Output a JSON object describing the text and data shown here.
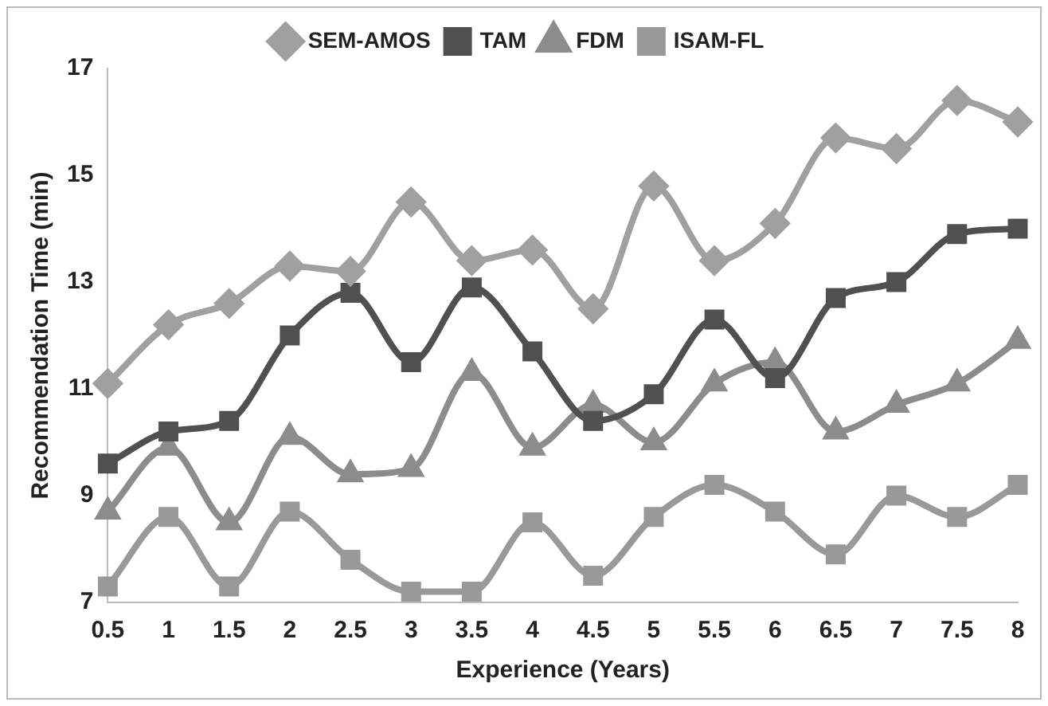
{
  "chart_data": {
    "type": "line",
    "xlabel": "Experience (Years)",
    "ylabel": "Recommendation Time (min)",
    "categories": [
      "0.5",
      "1",
      "1.5",
      "2",
      "2.5",
      "3",
      "3.5",
      "4",
      "4.5",
      "5",
      "5.5",
      "6",
      "6.5",
      "7",
      "7.5",
      "8"
    ],
    "series": [
      {
        "name": "SEM-AMOS",
        "color": "#a0a0a0",
        "marker": "diamond",
        "values": [
          11.1,
          12.2,
          12.6,
          13.3,
          13.2,
          14.5,
          13.4,
          13.6,
          12.5,
          14.8,
          13.4,
          14.1,
          15.7,
          15.5,
          16.4,
          16.0
        ]
      },
      {
        "name": "TAM",
        "color": "#505050",
        "marker": "square",
        "values": [
          9.6,
          10.2,
          10.4,
          12.0,
          12.8,
          11.5,
          12.9,
          11.7,
          10.4,
          10.9,
          12.3,
          11.2,
          12.7,
          13.0,
          13.9,
          14.0
        ]
      },
      {
        "name": "FDM",
        "color": "#8c8c8c",
        "marker": "triangle",
        "values": [
          8.7,
          9.9,
          8.5,
          10.1,
          9.4,
          9.5,
          11.3,
          9.9,
          10.7,
          10.0,
          11.1,
          11.5,
          10.2,
          10.7,
          11.1,
          11.9
        ]
      },
      {
        "name": "ISAM-FL",
        "color": "#999999",
        "marker": "square",
        "values": [
          7.3,
          8.6,
          7.3,
          8.7,
          7.8,
          7.2,
          7.2,
          8.5,
          7.5,
          8.6,
          9.2,
          8.7,
          7.9,
          9.0,
          8.6,
          9.2
        ]
      }
    ],
    "ylim": [
      7,
      17
    ],
    "yticks": [
      7,
      9,
      11,
      13,
      15,
      17
    ],
    "grid": false,
    "legend": "top",
    "line_style": "solid"
  }
}
